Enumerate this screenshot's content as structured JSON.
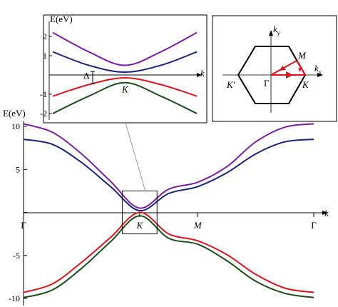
{
  "chart_data": [
    {
      "id": "main",
      "type": "line",
      "ylabel": "E(eV)",
      "xlabel": "k",
      "ylim": [
        -10.5,
        10.5
      ],
      "y_ticks": [
        -10,
        -5,
        0,
        5,
        10
      ],
      "y_tick_labels": [
        "-10",
        "-5",
        "",
        "5",
        "10"
      ],
      "x_ticks": [
        0,
        1,
        1.5,
        2.5
      ],
      "x_tick_labels": [
        "Γ",
        "K",
        "M",
        "Γ"
      ],
      "xlim": [
        0,
        2.5
      ],
      "grid": false,
      "series": [
        {
          "color": "#7a1fa2",
          "x": [
            0,
            0.25,
            0.5,
            0.75,
            1.0,
            1.25,
            1.5,
            1.75,
            2.0,
            2.25,
            2.5
          ],
          "values": [
            10.3,
            9.3,
            6.8,
            3.6,
            0.5,
            2.7,
            3.5,
            5.3,
            8.2,
            9.9,
            10.3
          ]
        },
        {
          "color": "#1a237e",
          "x": [
            0,
            0.25,
            0.5,
            0.75,
            1.0,
            1.25,
            1.5,
            1.75,
            2.0,
            2.25,
            2.5
          ],
          "values": [
            8.5,
            7.9,
            5.8,
            3.0,
            0.2,
            2.2,
            3.0,
            4.6,
            6.8,
            8.2,
            8.5
          ]
        },
        {
          "color": "#e0141e",
          "x": [
            0,
            0.25,
            0.5,
            0.75,
            1.0,
            1.25,
            1.5,
            1.75,
            2.0,
            2.25,
            2.5
          ],
          "values": [
            -9.3,
            -8.3,
            -5.8,
            -2.9,
            0.0,
            -2.5,
            -3.3,
            -4.9,
            -7.2,
            -8.8,
            -9.3
          ]
        },
        {
          "color": "#1b4d1b",
          "x": [
            0,
            0.25,
            0.5,
            0.75,
            1.0,
            1.25,
            1.5,
            1.75,
            2.0,
            2.25,
            2.5
          ],
          "values": [
            -9.9,
            -9.0,
            -6.5,
            -3.4,
            -0.4,
            -3.0,
            -3.7,
            -5.6,
            -8.0,
            -9.4,
            -9.9
          ]
        }
      ],
      "zoom_box": {
        "x": [
          0.85,
          1.15
        ],
        "y": [
          -2.5,
          2.5
        ]
      }
    },
    {
      "id": "inset",
      "type": "line",
      "ylabel": "E(eV)",
      "xlabel": "k",
      "ylim": [
        -2.4,
        2.4
      ],
      "y_ticks": [
        -2,
        -1,
        1,
        2
      ],
      "y_tick_labels": [
        "-2",
        "-1",
        "1",
        "2"
      ],
      "x_tick_label": "K",
      "gap_label": "Δ",
      "series": [
        {
          "color": "#7a1fa2",
          "x": [
            -1,
            -0.5,
            0,
            0.5,
            1
          ],
          "values": [
            2.2,
            1.2,
            0.5,
            1.2,
            2.2
          ]
        },
        {
          "color": "#1a237e",
          "x": [
            -1,
            -0.5,
            0,
            0.5,
            1
          ],
          "values": [
            1.2,
            0.5,
            0.15,
            0.5,
            1.2
          ]
        },
        {
          "color": "#e0141e",
          "x": [
            -1,
            -0.5,
            0,
            0.5,
            1
          ],
          "values": [
            -1.1,
            -0.5,
            -0.15,
            -0.5,
            -1.1
          ]
        },
        {
          "color": "#1b4d1b",
          "x": [
            -1,
            -0.5,
            0,
            0.5,
            1
          ],
          "values": [
            -2.0,
            -1.1,
            -0.4,
            -1.1,
            -2.0
          ]
        }
      ]
    }
  ],
  "bz": {
    "kx_label": "k",
    "kx_sub": "x",
    "ky_label": "k",
    "ky_sub": "y",
    "gamma": "Γ",
    "K": "K",
    "K_prime": "K'",
    "M": "M",
    "path_color": "#e0141e"
  }
}
